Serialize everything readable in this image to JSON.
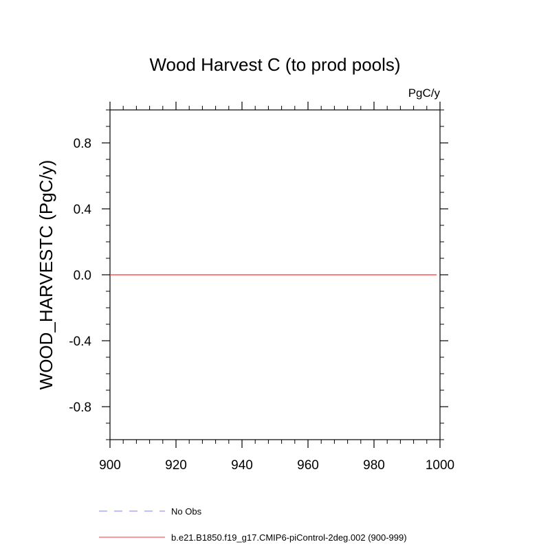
{
  "chart_data": {
    "type": "line",
    "title": "Wood Harvest C (to prod pools)",
    "units": "PgC/y",
    "xlabel": "",
    "ylabel": "WOOD_HARVESTC  (PgC/y)",
    "xlim": [
      900,
      1000
    ],
    "ylim": [
      -1.0,
      1.0
    ],
    "x_major_ticks": [
      900,
      920,
      940,
      960,
      980,
      1000
    ],
    "x_tick_labels": [
      "900",
      "920",
      "940",
      "960",
      "980",
      "1000"
    ],
    "y_major_ticks": [
      -0.8,
      -0.4,
      0.0,
      0.4,
      0.8
    ],
    "y_tick_labels": [
      "-0.8",
      "-0.4",
      "0.0",
      "0.4",
      "0.8"
    ],
    "x_minor_step": 4,
    "y_minor_step": 0.1,
    "grid": false,
    "legend_position": "bottom-left",
    "series": [
      {
        "name": "No Obs",
        "color": "#7f7fff",
        "dash": "dashed",
        "x": [],
        "y": []
      },
      {
        "name": "b.e21.B1850.f19_g17.CMIP6-piControl-2deg.002 (900-999)",
        "color": "#ff3030",
        "dash": "solid",
        "x": [
          900,
          999
        ],
        "y": [
          0.0,
          0.0
        ]
      }
    ]
  }
}
